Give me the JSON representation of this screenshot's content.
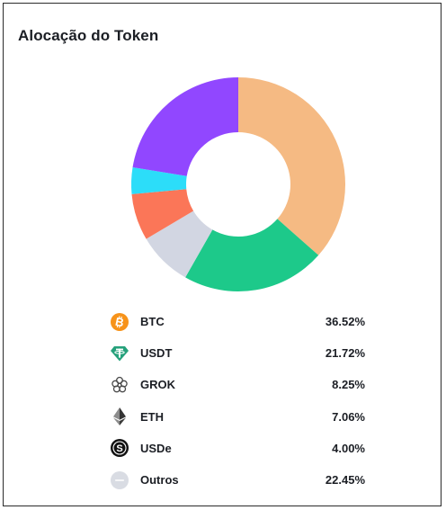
{
  "card": {
    "title": "Alocação do Token"
  },
  "chart_data": {
    "type": "pie",
    "style": "donut",
    "title": "Alocação do Token",
    "categories": [
      "BTC",
      "USDT",
      "GROK",
      "ETH",
      "USDe",
      "Outros"
    ],
    "values": [
      36.52,
      21.72,
      8.25,
      7.06,
      4.0,
      22.45
    ],
    "value_labels": [
      "36.52%",
      "21.72%",
      "8.25%",
      "7.06%",
      "4.00%",
      "22.45%"
    ],
    "colors": [
      "#F5BA83",
      "#1DC98A",
      "#D2D6E2",
      "#FB7658",
      "#2CDDF9",
      "#9147FF"
    ],
    "legend_position": "bottom",
    "start_angle_deg": 0,
    "direction": "clockwise"
  },
  "legend": [
    {
      "label": "BTC",
      "value": "36.52%",
      "icon": "bitcoin-icon",
      "icon_color": "#F7931A"
    },
    {
      "label": "USDT",
      "value": "21.72%",
      "icon": "tether-icon",
      "icon_color": "#26A17B"
    },
    {
      "label": "GROK",
      "value": "8.25%",
      "icon": "grok-icon",
      "icon_color": "#4a4a4a"
    },
    {
      "label": "ETH",
      "value": "7.06%",
      "icon": "ethereum-icon",
      "icon_color": "#343434"
    },
    {
      "label": "USDe",
      "value": "4.00%",
      "icon": "usde-icon",
      "icon_color": "#111111"
    },
    {
      "label": "Outros",
      "value": "22.45%",
      "icon": "others-icon",
      "icon_color": "#D9DCE3"
    }
  ]
}
